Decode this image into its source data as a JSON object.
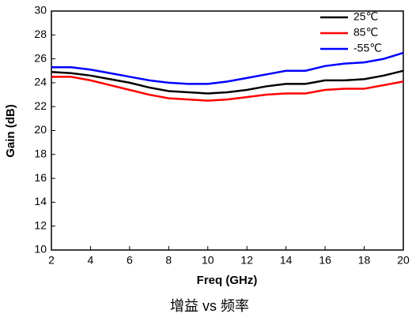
{
  "chart_data": {
    "type": "line",
    "xlabel": "Freq (GHz)",
    "ylabel": "Gain (dB)",
    "caption": "增益 vs 频率",
    "x": [
      2,
      3,
      4,
      5,
      6,
      7,
      8,
      9,
      10,
      11,
      12,
      13,
      14,
      15,
      16,
      17,
      18,
      19,
      20
    ],
    "series": [
      {
        "name": "25℃",
        "color": "#000000",
        "values": [
          24.9,
          24.8,
          24.6,
          24.3,
          24.0,
          23.6,
          23.3,
          23.2,
          23.1,
          23.2,
          23.4,
          23.7,
          23.9,
          23.9,
          24.2,
          24.2,
          24.3,
          24.6,
          25.0
        ]
      },
      {
        "name": "85℃",
        "color": "#ff0000",
        "values": [
          24.5,
          24.5,
          24.2,
          23.8,
          23.4,
          23.0,
          22.7,
          22.6,
          22.5,
          22.6,
          22.8,
          23.0,
          23.1,
          23.1,
          23.4,
          23.5,
          23.5,
          23.8,
          24.1
        ]
      },
      {
        "name": "-55℃",
        "color": "#0000ff",
        "values": [
          25.3,
          25.3,
          25.1,
          24.8,
          24.5,
          24.2,
          24.0,
          23.9,
          23.9,
          24.1,
          24.4,
          24.7,
          25.0,
          25.0,
          25.4,
          25.6,
          25.7,
          26.0,
          26.5
        ]
      }
    ],
    "xlim": [
      2,
      20
    ],
    "xticks": [
      2,
      4,
      6,
      8,
      10,
      12,
      14,
      16,
      18,
      20
    ],
    "ylim": [
      10,
      30
    ],
    "yticks": [
      10,
      12,
      14,
      16,
      18,
      20,
      22,
      24,
      26,
      28,
      30
    ],
    "grid": false,
    "legend": "upper right"
  }
}
